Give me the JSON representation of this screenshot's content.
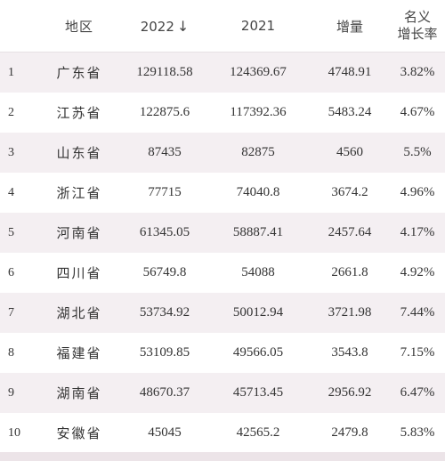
{
  "header": {
    "rank": "",
    "region": "地区",
    "y2022": "2022",
    "sort_icon": "↓",
    "y2021": "2021",
    "increase": "增量",
    "rate_line1": "名义",
    "rate_line2": "增长率"
  },
  "rows": [
    {
      "rank": "1",
      "region": "广东省",
      "y2022": "129118.58",
      "y2021": "124369.67",
      "increase": "4748.91",
      "rate": "3.82%"
    },
    {
      "rank": "2",
      "region": "江苏省",
      "y2022": "122875.6",
      "y2021": "117392.36",
      "increase": "5483.24",
      "rate": "4.67%"
    },
    {
      "rank": "3",
      "region": "山东省",
      "y2022": "87435",
      "y2021": "82875",
      "increase": "4560",
      "rate": "5.5%"
    },
    {
      "rank": "4",
      "region": "浙江省",
      "y2022": "77715",
      "y2021": "74040.8",
      "increase": "3674.2",
      "rate": "4.96%"
    },
    {
      "rank": "5",
      "region": "河南省",
      "y2022": "61345.05",
      "y2021": "58887.41",
      "increase": "2457.64",
      "rate": "4.17%"
    },
    {
      "rank": "6",
      "region": "四川省",
      "y2022": "56749.8",
      "y2021": "54088",
      "increase": "2661.8",
      "rate": "4.92%"
    },
    {
      "rank": "7",
      "region": "湖北省",
      "y2022": "53734.92",
      "y2021": "50012.94",
      "increase": "3721.98",
      "rate": "7.44%"
    },
    {
      "rank": "8",
      "region": "福建省",
      "y2022": "53109.85",
      "y2021": "49566.05",
      "increase": "3543.8",
      "rate": "7.15%"
    },
    {
      "rank": "9",
      "region": "湖南省",
      "y2022": "48670.37",
      "y2021": "45713.45",
      "increase": "2956.92",
      "rate": "6.47%"
    },
    {
      "rank": "10",
      "region": "安徽省",
      "y2022": "45045",
      "y2021": "42565.2",
      "increase": "2479.8",
      "rate": "5.83%"
    }
  ],
  "colors": {
    "row_shade": "#f4eff2",
    "text": "#333333"
  }
}
